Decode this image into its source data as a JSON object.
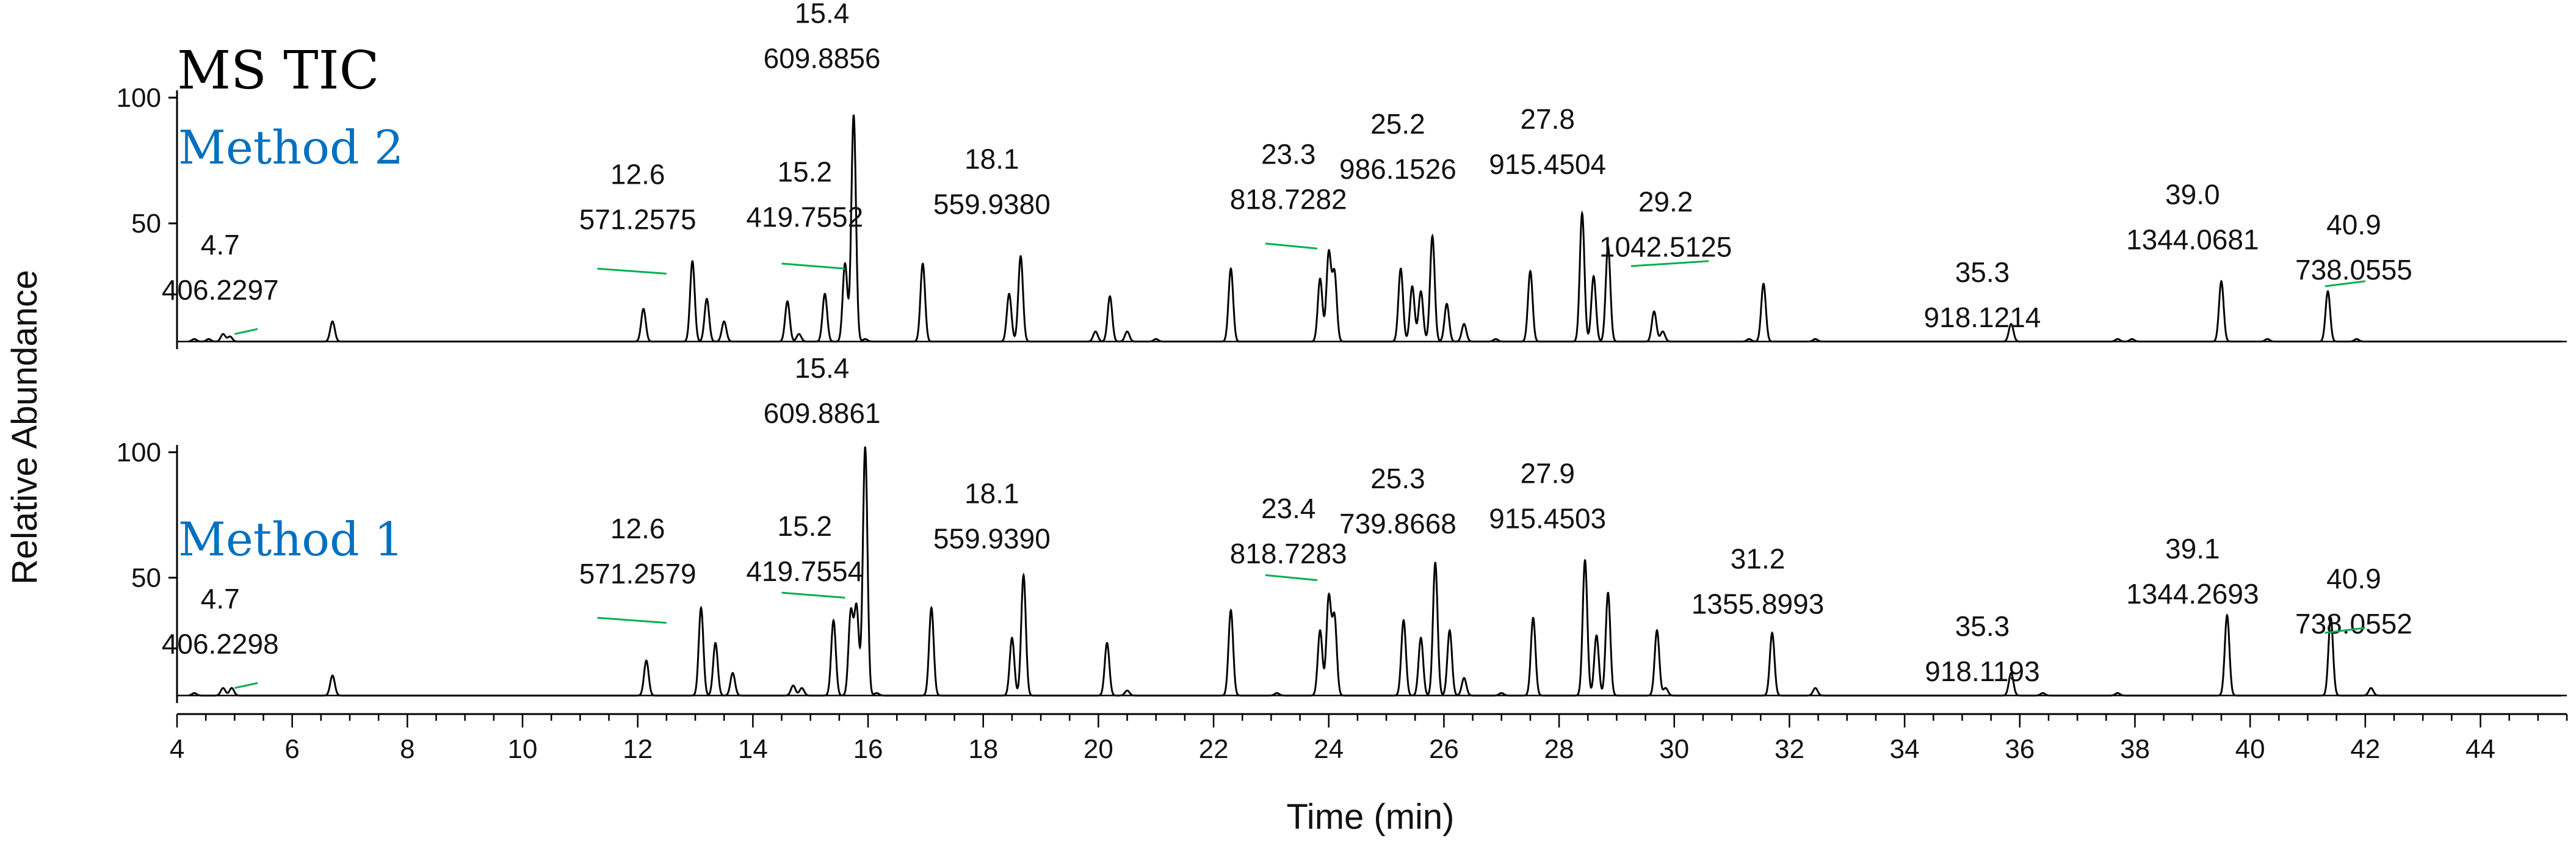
{
  "chart_data": {
    "type": "line",
    "title": "MS TIC",
    "xlabel": "Time (min)",
    "ylabel": "Relative Abundance",
    "xlim": [
      4,
      45.5
    ],
    "x_ticks": [
      4,
      6,
      8,
      10,
      12,
      14,
      16,
      18,
      20,
      22,
      24,
      26,
      28,
      30,
      32,
      34,
      36,
      38,
      40,
      42,
      44
    ],
    "y_ticks": [
      50,
      100
    ],
    "ylim": [
      0,
      100
    ],
    "grid": false,
    "line_color": "#000000",
    "label_color": "#0070c0",
    "leader_color": "#00b050",
    "panels": [
      {
        "name": "Method 2",
        "baseline": 3,
        "peaks": [
          {
            "x": 4.3,
            "y": 4
          },
          {
            "x": 4.55,
            "y": 4
          },
          {
            "x": 4.8,
            "y": 6
          },
          {
            "x": 4.92,
            "y": 5
          },
          {
            "x": 6.7,
            "y": 11
          },
          {
            "x": 12.1,
            "y": 16
          },
          {
            "x": 12.95,
            "y": 35
          },
          {
            "x": 13.2,
            "y": 20
          },
          {
            "x": 13.5,
            "y": 11
          },
          {
            "x": 14.6,
            "y": 19
          },
          {
            "x": 14.8,
            "y": 6
          },
          {
            "x": 15.25,
            "y": 22
          },
          {
            "x": 15.6,
            "y": 34
          },
          {
            "x": 15.75,
            "y": 93
          },
          {
            "x": 15.95,
            "y": 4
          },
          {
            "x": 16.95,
            "y": 34
          },
          {
            "x": 18.45,
            "y": 22
          },
          {
            "x": 18.65,
            "y": 37
          },
          {
            "x": 19.95,
            "y": 7
          },
          {
            "x": 20.2,
            "y": 21
          },
          {
            "x": 20.5,
            "y": 7
          },
          {
            "x": 21.0,
            "y": 4
          },
          {
            "x": 22.3,
            "y": 32
          },
          {
            "x": 23.85,
            "y": 28
          },
          {
            "x": 24.0,
            "y": 38
          },
          {
            "x": 24.1,
            "y": 30
          },
          {
            "x": 25.25,
            "y": 32
          },
          {
            "x": 25.45,
            "y": 25
          },
          {
            "x": 25.6,
            "y": 23
          },
          {
            "x": 25.8,
            "y": 45
          },
          {
            "x": 26.05,
            "y": 18
          },
          {
            "x": 26.35,
            "y": 10
          },
          {
            "x": 26.9,
            "y": 4
          },
          {
            "x": 27.5,
            "y": 31
          },
          {
            "x": 28.4,
            "y": 54
          },
          {
            "x": 28.6,
            "y": 29
          },
          {
            "x": 28.85,
            "y": 41
          },
          {
            "x": 29.65,
            "y": 15
          },
          {
            "x": 29.8,
            "y": 7
          },
          {
            "x": 31.3,
            "y": 4
          },
          {
            "x": 31.55,
            "y": 26
          },
          {
            "x": 32.45,
            "y": 4
          },
          {
            "x": 35.85,
            "y": 10
          },
          {
            "x": 37.7,
            "y": 4
          },
          {
            "x": 37.95,
            "y": 4
          },
          {
            "x": 39.5,
            "y": 27
          },
          {
            "x": 40.3,
            "y": 4
          },
          {
            "x": 41.35,
            "y": 23
          },
          {
            "x": 41.85,
            "y": 4
          }
        ],
        "annotations": [
          {
            "rt": "4.7",
            "mz": "406.2297",
            "x": 4.75,
            "y": 27,
            "leader": [
              [
                5.0,
                6
              ],
              [
                5.4,
                8
              ]
            ]
          },
          {
            "rt": "12.6",
            "mz": "571.2575",
            "x": 12.0,
            "y": 55,
            "leader": [
              [
                11.3,
                32
              ],
              [
                12.5,
                30
              ]
            ]
          },
          {
            "rt": "15.2",
            "mz": "419.7552",
            "x": 14.9,
            "y": 56,
            "leader": [
              [
                14.5,
                34
              ],
              [
                15.6,
                32
              ]
            ]
          },
          {
            "rt": "15.4",
            "mz": "609.8856",
            "x": 15.2,
            "y": 119,
            "leader": []
          },
          {
            "rt": "18.1",
            "mz": "559.9380",
            "x": 18.15,
            "y": 61,
            "leader": []
          },
          {
            "rt": "23.3",
            "mz": "818.7282",
            "x": 23.3,
            "y": 63,
            "leader": [
              [
                22.9,
                42
              ],
              [
                23.8,
                40
              ]
            ]
          },
          {
            "rt": "25.2",
            "mz": "986.1526",
            "x": 25.2,
            "y": 75,
            "leader": []
          },
          {
            "rt": "27.8",
            "mz": "915.4504",
            "x": 27.8,
            "y": 77,
            "leader": []
          },
          {
            "rt": "29.2",
            "mz": "1042.5125",
            "x": 29.85,
            "y": 44,
            "leader": [
              [
                29.25,
                33
              ],
              [
                30.6,
                35
              ]
            ]
          },
          {
            "rt": "35.3",
            "mz": "918.1214",
            "x": 35.35,
            "y": 16,
            "leader": []
          },
          {
            "rt": "39.0",
            "mz": "1344.0681",
            "x": 39.0,
            "y": 47,
            "leader": []
          },
          {
            "rt": "40.9",
            "mz": "738.0555",
            "x": 41.8,
            "y": 35,
            "leader": [
              [
                41.3,
                25
              ],
              [
                42.0,
                27
              ]
            ]
          }
        ]
      },
      {
        "name": "Method 1",
        "baseline": 3,
        "peaks": [
          {
            "x": 4.3,
            "y": 4
          },
          {
            "x": 4.8,
            "y": 6
          },
          {
            "x": 4.95,
            "y": 6
          },
          {
            "x": 6.7,
            "y": 11
          },
          {
            "x": 12.15,
            "y": 17
          },
          {
            "x": 13.1,
            "y": 38
          },
          {
            "x": 13.35,
            "y": 24
          },
          {
            "x": 13.65,
            "y": 12
          },
          {
            "x": 14.7,
            "y": 7
          },
          {
            "x": 14.85,
            "y": 6
          },
          {
            "x": 15.4,
            "y": 33
          },
          {
            "x": 15.7,
            "y": 36
          },
          {
            "x": 15.8,
            "y": 38
          },
          {
            "x": 15.95,
            "y": 102
          },
          {
            "x": 16.15,
            "y": 4
          },
          {
            "x": 17.1,
            "y": 38
          },
          {
            "x": 18.5,
            "y": 26
          },
          {
            "x": 18.7,
            "y": 51
          },
          {
            "x": 20.15,
            "y": 24
          },
          {
            "x": 20.5,
            "y": 5
          },
          {
            "x": 22.3,
            "y": 37
          },
          {
            "x": 23.1,
            "y": 4
          },
          {
            "x": 23.85,
            "y": 29
          },
          {
            "x": 24.0,
            "y": 42
          },
          {
            "x": 24.1,
            "y": 34
          },
          {
            "x": 25.3,
            "y": 33
          },
          {
            "x": 25.6,
            "y": 26
          },
          {
            "x": 25.85,
            "y": 56
          },
          {
            "x": 26.1,
            "y": 29
          },
          {
            "x": 26.35,
            "y": 10
          },
          {
            "x": 27.0,
            "y": 4
          },
          {
            "x": 27.55,
            "y": 34
          },
          {
            "x": 28.45,
            "y": 57
          },
          {
            "x": 28.65,
            "y": 27
          },
          {
            "x": 28.85,
            "y": 44
          },
          {
            "x": 29.7,
            "y": 29
          },
          {
            "x": 29.85,
            "y": 6
          },
          {
            "x": 31.7,
            "y": 28
          },
          {
            "x": 32.45,
            "y": 6
          },
          {
            "x": 35.85,
            "y": 12
          },
          {
            "x": 36.4,
            "y": 4
          },
          {
            "x": 37.7,
            "y": 4
          },
          {
            "x": 39.6,
            "y": 35
          },
          {
            "x": 41.4,
            "y": 34
          },
          {
            "x": 42.1,
            "y": 6
          }
        ],
        "annotations": [
          {
            "rt": "4.7",
            "mz": "406.2298",
            "x": 4.75,
            "y": 27,
            "leader": [
              [
                5.0,
                6
              ],
              [
                5.4,
                8
              ]
            ]
          },
          {
            "rt": "12.6",
            "mz": "571.2579",
            "x": 12.0,
            "y": 55,
            "leader": [
              [
                11.3,
                34
              ],
              [
                12.5,
                32
              ]
            ]
          },
          {
            "rt": "15.2",
            "mz": "419.7554",
            "x": 14.9,
            "y": 56,
            "leader": [
              [
                14.5,
                44
              ],
              [
                15.6,
                42
              ]
            ]
          },
          {
            "rt": "15.4",
            "mz": "609.8861",
            "x": 15.2,
            "y": 119,
            "leader": []
          },
          {
            "rt": "18.1",
            "mz": "559.9390",
            "x": 18.15,
            "y": 69,
            "leader": []
          },
          {
            "rt": "23.4",
            "mz": "818.7283",
            "x": 23.3,
            "y": 63,
            "leader": [
              [
                22.9,
                51
              ],
              [
                23.8,
                49
              ]
            ]
          },
          {
            "rt": "25.3",
            "mz": "739.8668",
            "x": 25.2,
            "y": 75,
            "leader": []
          },
          {
            "rt": "27.9",
            "mz": "915.4503",
            "x": 27.8,
            "y": 77,
            "leader": []
          },
          {
            "rt": "31.2",
            "mz": "1355.8993",
            "x": 31.45,
            "y": 43,
            "leader": []
          },
          {
            "rt": "35.3",
            "mz": "918.1193",
            "x": 35.35,
            "y": 16,
            "leader": []
          },
          {
            "rt": "39.1",
            "mz": "1344.2693",
            "x": 39.0,
            "y": 47,
            "leader": []
          },
          {
            "rt": "40.9",
            "mz": "738.0552",
            "x": 41.8,
            "y": 35,
            "leader": [
              [
                41.3,
                28
              ],
              [
                42.0,
                30
              ]
            ]
          }
        ]
      }
    ]
  }
}
